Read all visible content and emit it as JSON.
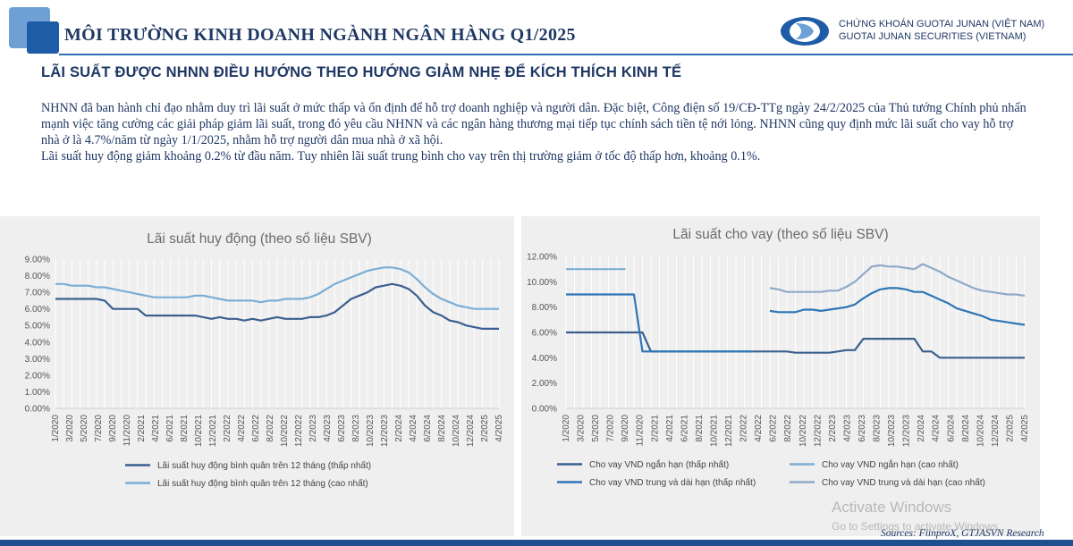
{
  "header": {
    "title": "MÔI TRƯỜNG KINH DOANH NGÀNH NGÂN HÀNG Q1/2025",
    "brand_line1": "CHỨNG KHOÁN GUOTAI JUNAN (VIỆT NAM)",
    "brand_line2": "GUOTAI JUNAN SECURITIES (VIETNAM)"
  },
  "subtitle": "LÃI SUẤT ĐƯỢC NHNN ĐIỀU HƯỚNG THEO HƯỚNG GIẢM NHẸ ĐỂ KÍCH THÍCH KINH TẾ",
  "body": {
    "paragraph1": "NHNN đã ban hành chỉ đạo nhằm duy trì lãi suất ở mức thấp và ổn định để hỗ trợ doanh nghiệp và người dân. Đặc biệt, Công điện số 19/CĐ-TTg ngày 24/2/2025 của Thủ tướng Chính phủ nhấn mạnh việc tăng cường các giải pháp giảm lãi suất, trong đó yêu cầu NHNN và các ngân hàng thương mại tiếp tục chính sách tiền tệ nới lỏng. NHNN cũng quy định mức lãi suất cho vay hỗ trợ nhà ở là 4.7%/năm từ ngày 1/1/2025, nhằm hỗ trợ người dân mua nhà ở xã hội.",
    "paragraph2": "Lãi suất huy động giảm khoảng 0.2% từ đầu năm. Tuy nhiên lãi suất trung bình cho vay trên thị trường giảm ở tốc độ thấp hơn, khoảng 0.1%."
  },
  "chart_data": [
    {
      "type": "line",
      "title": "Lãi suất huy động (theo số liệu SBV)",
      "xlabel": "",
      "ylabel": "",
      "ylim": [
        0,
        9
      ],
      "y_ticks": [
        "0.00%",
        "1.00%",
        "2.00%",
        "3.00%",
        "4.00%",
        "5.00%",
        "6.00%",
        "7.00%",
        "8.00%",
        "9.00%"
      ],
      "x_tick_labels": [
        "1/2020",
        "3/2020",
        "5/2020",
        "7/2020",
        "9/2020",
        "11/2020",
        "2/2021",
        "4/2021",
        "6/2021",
        "8/2021",
        "10/2021",
        "12/2021",
        "2/2022",
        "4/2022",
        "6/2022",
        "8/2022",
        "10/2022",
        "12/2022",
        "2/2023",
        "4/2023",
        "6/2023",
        "8/2023",
        "10/2023",
        "12/2023",
        "2/2024",
        "4/2024",
        "6/2024",
        "8/2024",
        "10/2024",
        "12/2024",
        "2/2025",
        "4/2025"
      ],
      "grid": "vertical",
      "legend": "bottom",
      "series": [
        {
          "name": "Lãi suất huy động bình quân trên 12 tháng (thấp nhất)",
          "color": "#3b5f8f",
          "values": [
            6.6,
            6.6,
            6.6,
            6.6,
            6.6,
            6.6,
            6.5,
            6.0,
            6.0,
            6.0,
            6.0,
            5.6,
            5.6,
            5.6,
            5.6,
            5.6,
            5.6,
            5.6,
            5.5,
            5.4,
            5.5,
            5.4,
            5.4,
            5.3,
            5.4,
            5.3,
            5.4,
            5.5,
            5.4,
            5.4,
            5.4,
            5.5,
            5.5,
            5.6,
            5.8,
            6.2,
            6.6,
            6.8,
            7.0,
            7.3,
            7.4,
            7.5,
            7.4,
            7.2,
            6.8,
            6.2,
            5.8,
            5.6,
            5.3,
            5.2,
            5.0,
            4.9,
            4.8,
            4.8,
            4.8
          ]
        },
        {
          "name": "Lãi suất huy động bình quân trên 12 tháng (cao nhất)",
          "color": "#7aaed6",
          "values": [
            7.5,
            7.5,
            7.4,
            7.4,
            7.4,
            7.3,
            7.3,
            7.2,
            7.1,
            7.0,
            6.9,
            6.8,
            6.7,
            6.7,
            6.7,
            6.7,
            6.7,
            6.8,
            6.8,
            6.7,
            6.6,
            6.5,
            6.5,
            6.5,
            6.5,
            6.4,
            6.5,
            6.5,
            6.6,
            6.6,
            6.6,
            6.7,
            6.9,
            7.2,
            7.5,
            7.7,
            7.9,
            8.1,
            8.3,
            8.4,
            8.5,
            8.5,
            8.4,
            8.2,
            7.8,
            7.3,
            6.9,
            6.6,
            6.4,
            6.2,
            6.1,
            6.0,
            6.0,
            6.0,
            6.0
          ]
        }
      ]
    },
    {
      "type": "line",
      "title": "Lãi suất cho vay (theo số liệu SBV)",
      "xlabel": "",
      "ylabel": "",
      "ylim": [
        0,
        12
      ],
      "y_ticks": [
        "0.00%",
        "2.00%",
        "4.00%",
        "6.00%",
        "8.00%",
        "10.00%",
        "12.00%"
      ],
      "x_tick_labels": [
        "1/2020",
        "3/2020",
        "5/2020",
        "7/2020",
        "9/2020",
        "11/2020",
        "2/2021",
        "4/2021",
        "6/2021",
        "8/2021",
        "10/2021",
        "12/2021",
        "2/2022",
        "4/2022",
        "6/2022",
        "8/2022",
        "10/2022",
        "12/2022",
        "2/2023",
        "4/2023",
        "6/2023",
        "8/2023",
        "10/2023",
        "12/2023",
        "2/2024",
        "4/2024",
        "6/2024",
        "8/2024",
        "10/2024",
        "12/2024",
        "2/2025",
        "4/2025"
      ],
      "grid": "vertical",
      "legend": "bottom",
      "series": [
        {
          "name": "Cho vay VND ngắn hạn (thấp nhất)",
          "color": "#3b5f8f",
          "values": [
            6.0,
            6.0,
            6.0,
            6.0,
            6.0,
            6.0,
            6.0,
            6.0,
            6.0,
            6.0,
            4.5,
            4.5,
            4.5,
            4.5,
            4.5,
            4.5,
            4.5,
            4.5,
            4.5,
            4.5,
            4.5,
            4.5,
            4.5,
            4.5,
            4.5,
            4.5,
            4.5,
            4.4,
            4.4,
            4.4,
            4.4,
            4.4,
            4.5,
            4.6,
            4.6,
            5.5,
            5.5,
            5.5,
            5.5,
            5.5,
            5.5,
            5.5,
            4.5,
            4.5,
            4.0,
            4.0,
            4.0,
            4.0,
            4.0,
            4.0,
            4.0,
            4.0,
            4.0,
            4.0,
            4.0
          ]
        },
        {
          "name": "Cho vay VND ngắn hạn (cao nhất)",
          "color": "#7aaed6",
          "values": [
            11.0,
            11.0,
            11.0,
            11.0,
            11.0,
            11.0,
            11.0,
            11.0,
            null,
            null,
            null,
            null,
            null,
            null,
            null,
            null,
            null,
            null,
            null,
            null,
            null,
            null,
            null,
            null,
            null,
            null,
            null,
            null,
            null,
            null,
            null,
            null,
            null,
            null,
            null,
            null,
            null,
            null,
            null,
            null,
            null,
            null,
            null,
            null,
            null,
            null,
            null,
            null,
            null,
            null,
            null,
            null,
            null,
            null,
            null
          ]
        },
        {
          "name": "Cho vay VND trung và dài hạn (thấp nhất)",
          "color": "#2e75b6",
          "values": [
            9.0,
            9.0,
            9.0,
            9.0,
            9.0,
            9.0,
            9.0,
            9.0,
            9.0,
            4.5,
            4.5,
            4.5,
            4.5,
            4.5,
            4.5,
            4.5,
            4.5,
            4.5,
            4.5,
            4.5,
            4.5,
            4.5,
            4.5,
            null,
            7.7,
            7.6,
            7.6,
            7.6,
            7.8,
            7.8,
            7.7,
            7.8,
            7.9,
            8.0,
            8.2,
            8.7,
            9.1,
            9.4,
            9.5,
            9.5,
            9.4,
            9.2,
            9.2,
            8.9,
            8.6,
            8.3,
            7.9,
            7.7,
            7.5,
            7.3,
            7.0,
            6.9,
            6.8,
            6.7,
            6.6
          ]
        },
        {
          "name": "Cho vay VND trung và dài hạn (cao nhất)",
          "color": "#8fa9c8",
          "values": [
            null,
            null,
            null,
            null,
            null,
            null,
            null,
            null,
            null,
            null,
            null,
            null,
            null,
            null,
            null,
            null,
            null,
            null,
            null,
            null,
            null,
            null,
            null,
            null,
            9.5,
            9.4,
            9.2,
            9.2,
            9.2,
            9.2,
            9.2,
            9.3,
            9.3,
            9.6,
            10.0,
            10.6,
            11.2,
            11.3,
            11.2,
            11.2,
            11.1,
            11.0,
            11.4,
            11.1,
            10.8,
            10.4,
            10.1,
            9.8,
            9.5,
            9.3,
            9.2,
            9.1,
            9.0,
            9.0,
            8.9
          ]
        }
      ]
    }
  ],
  "footer": {
    "watermark_line1": "Activate Windows",
    "watermark_line2": "Go to Settings to activate Windows.",
    "source": "Sources: FiinproX, GTJASVN Research"
  }
}
